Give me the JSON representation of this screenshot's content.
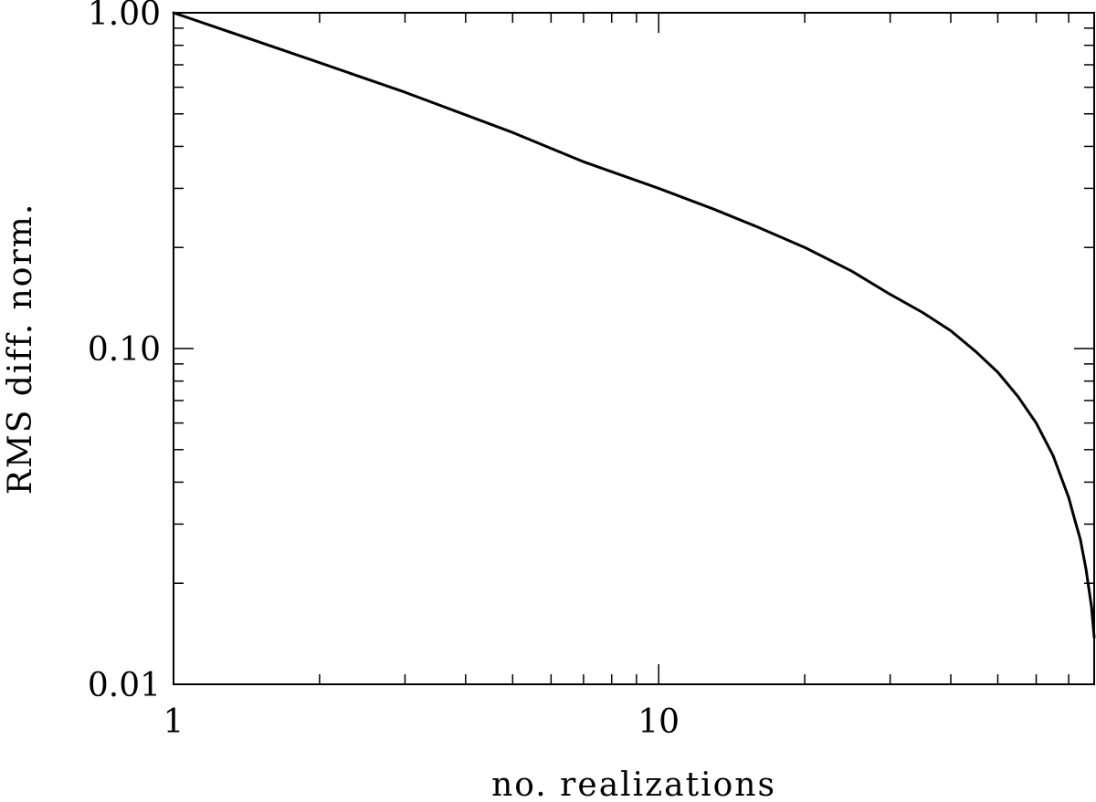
{
  "chart_data": {
    "type": "line",
    "xlabel": "no. realizations",
    "ylabel": "RMS diff. norm.",
    "xscale": "log",
    "yscale": "log",
    "xlim": [
      1,
      79
    ],
    "ylim": [
      0.01,
      1.0
    ],
    "grid": false,
    "x_tick_labels": [
      {
        "value": 1,
        "label": "1"
      },
      {
        "value": 10,
        "label": "10"
      }
    ],
    "y_tick_labels": [
      {
        "value": 1.0,
        "label": "1.00"
      },
      {
        "value": 0.1,
        "label": "0.10"
      },
      {
        "value": 0.01,
        "label": "0.01"
      }
    ],
    "series": [
      {
        "x": [
          1,
          2,
          3,
          5,
          7,
          10,
          13,
          16,
          20,
          25,
          30,
          35,
          40,
          45,
          50,
          55,
          60,
          65,
          70,
          72,
          74,
          76,
          78,
          79
        ],
        "y": [
          1.0,
          0.71,
          0.58,
          0.44,
          0.36,
          0.3,
          0.26,
          0.23,
          0.2,
          0.17,
          0.145,
          0.128,
          0.113,
          0.098,
          0.085,
          0.072,
          0.06,
          0.048,
          0.036,
          0.031,
          0.027,
          0.022,
          0.017,
          0.0138
        ]
      }
    ]
  }
}
